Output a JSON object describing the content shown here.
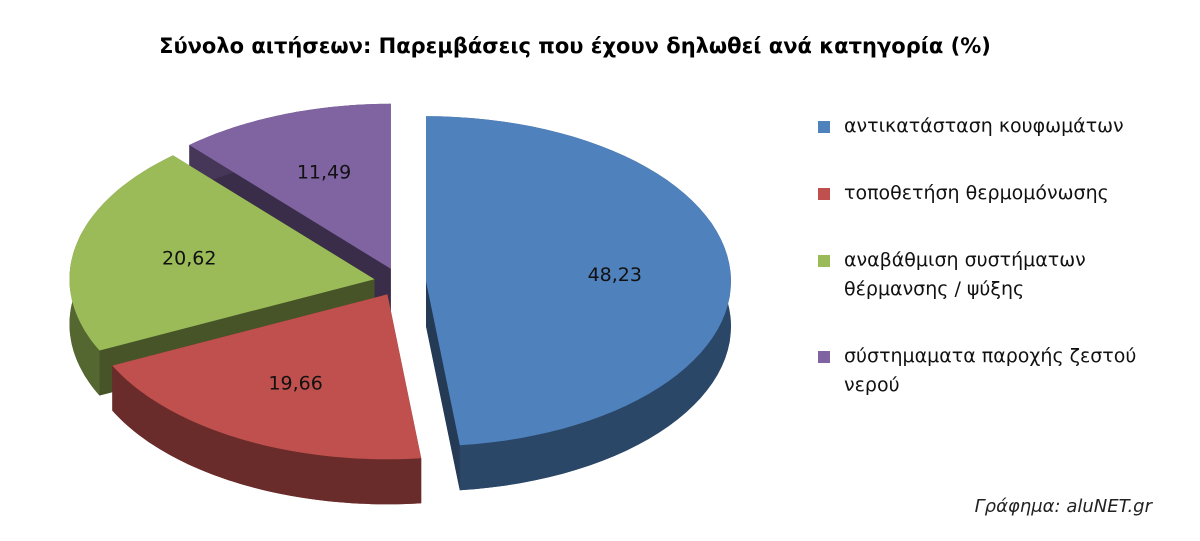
{
  "chart_data": {
    "type": "pie",
    "title": "Σύνολο αιτήσεων: Παρεμβάσεις που έχουν δηλωθεί ανά κατηγορία (%)",
    "categories": [
      "αντικατάσταση κουφωμάτων",
      "τοποθετήση θερμομόνωσης",
      "αναβάθμιση συστήματων θέρμανσης / ψύξης",
      "σύστημαματα παροχής ζεστού νερού"
    ],
    "values": [
      48.23,
      19.66,
      20.62,
      11.49
    ],
    "value_labels": [
      "48,23",
      "19,66",
      "20,62",
      "11,49"
    ],
    "colors": [
      "#4f81bd",
      "#c0504d",
      "#9bbb59",
      "#8064a2"
    ],
    "legend": "right",
    "source": "Γράφημα: aluNET.gr"
  }
}
